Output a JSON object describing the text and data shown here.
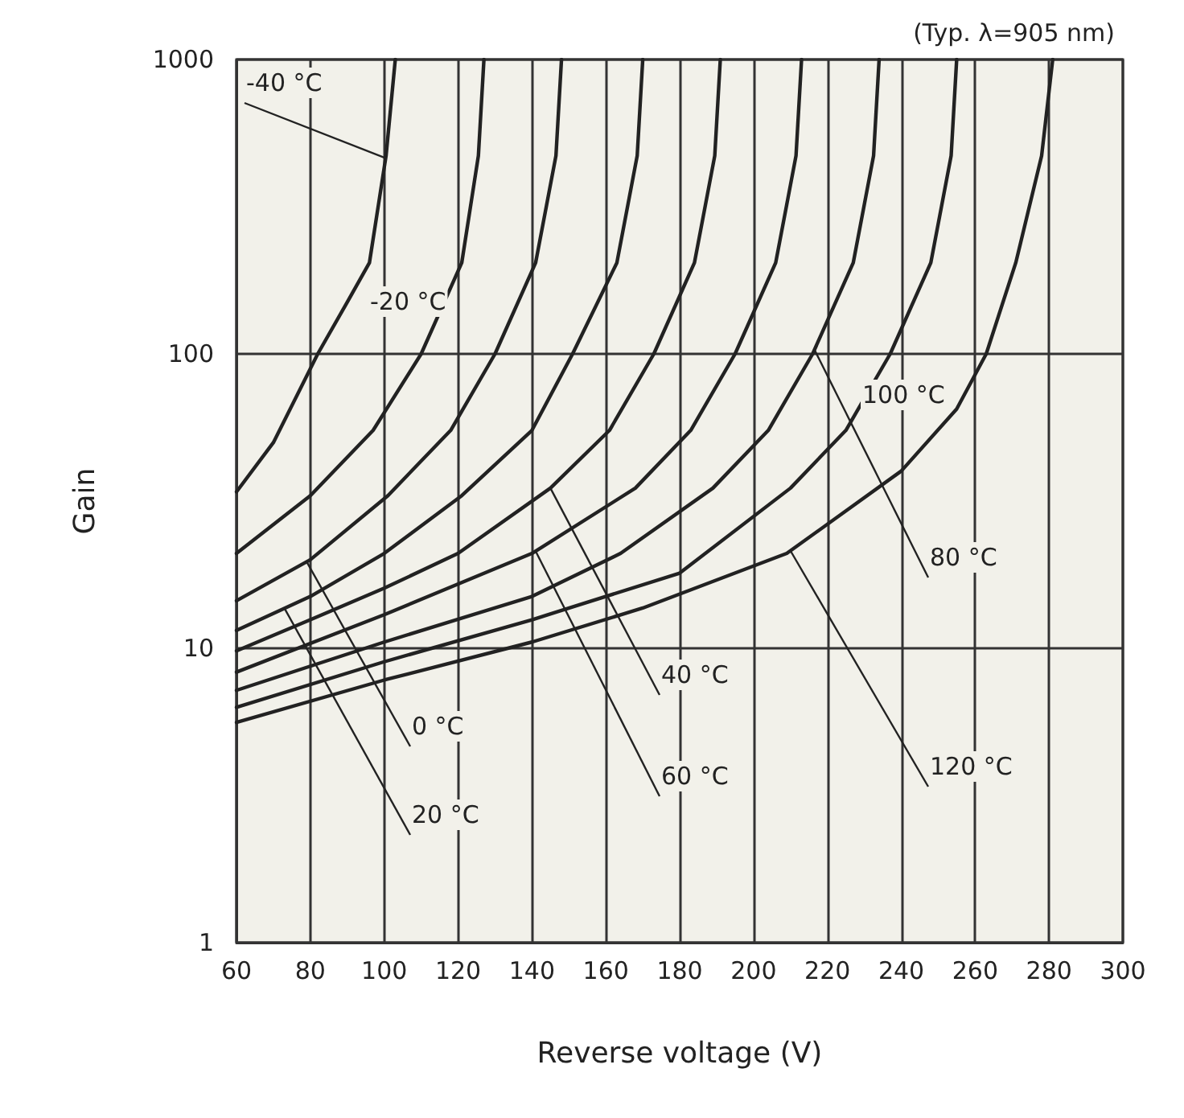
{
  "chart_data": {
    "type": "line",
    "subtitle": "(Typ. λ=905 nm)",
    "xlabel": "Reverse voltage (V)",
    "ylabel": "Gain",
    "xlim": [
      60,
      300
    ],
    "xticks": [
      60,
      80,
      100,
      120,
      140,
      160,
      180,
      200,
      220,
      240,
      260,
      280,
      300
    ],
    "ylim": [
      1,
      1000
    ],
    "yticks": [
      1,
      10,
      100,
      1000
    ],
    "log": "y",
    "grid": true,
    "legend": false,
    "marker": "none",
    "line_style": "solid",
    "series": [
      {
        "name": "-40 °C",
        "color": "#222222",
        "x": [
          60,
          70,
          82,
          90,
          96,
          100.5,
          103
        ],
        "values": [
          34,
          50,
          100,
          150,
          204,
          471,
          1000
        ]
      },
      {
        "name": "-20 °C",
        "color": "#222222",
        "x": [
          60,
          80,
          97,
          110,
          121,
          125.5,
          127
        ],
        "values": [
          21,
          33,
          55,
          100,
          204,
          471,
          1000
        ]
      },
      {
        "name": "0 °C",
        "color": "#222222",
        "x": [
          60,
          80,
          101,
          118,
          130,
          141,
          146.5,
          148
        ],
        "values": [
          14.5,
          20,
          33,
          55,
          100,
          204,
          471,
          1000
        ]
      },
      {
        "name": "20 °C",
        "color": "#222222",
        "x": [
          60,
          80,
          100,
          121,
          140,
          151,
          163,
          168.5,
          170
        ],
        "values": [
          11.5,
          15,
          21,
          33,
          55,
          100,
          204,
          471,
          1000
        ]
      },
      {
        "name": "40 °C",
        "color": "#222222",
        "x": [
          60,
          80,
          100,
          120,
          145,
          161,
          173,
          184,
          189.5,
          191
        ],
        "values": [
          9.8,
          12.5,
          16,
          21,
          35,
          55,
          100,
          204,
          471,
          1000
        ]
      },
      {
        "name": "60 °C",
        "color": "#222222",
        "x": [
          60,
          100,
          140,
          168,
          183,
          195,
          206,
          211.5,
          213
        ],
        "values": [
          8.3,
          13,
          21,
          35,
          55,
          100,
          204,
          471,
          1000
        ]
      },
      {
        "name": "80 °C",
        "color": "#222222",
        "x": [
          60,
          100,
          140,
          164,
          189,
          204,
          216,
          227,
          232.5,
          234
        ],
        "values": [
          7.2,
          10.5,
          15,
          21,
          35,
          55,
          100,
          204,
          471,
          1000
        ]
      },
      {
        "name": "100 °C",
        "color": "#222222",
        "x": [
          60,
          100,
          140,
          180,
          210,
          225,
          237,
          248,
          253.5,
          255
        ],
        "values": [
          6.3,
          9,
          12.5,
          18,
          35,
          55,
          100,
          204,
          471,
          1000
        ]
      },
      {
        "name": "120 °C",
        "color": "#222222",
        "x": [
          60,
          100,
          140,
          170,
          209,
          240,
          255,
          263,
          271,
          278,
          281
        ],
        "values": [
          5.6,
          7.8,
          10.5,
          13.7,
          21,
          40,
          65,
          100,
          204,
          471,
          1000
        ]
      }
    ]
  }
}
